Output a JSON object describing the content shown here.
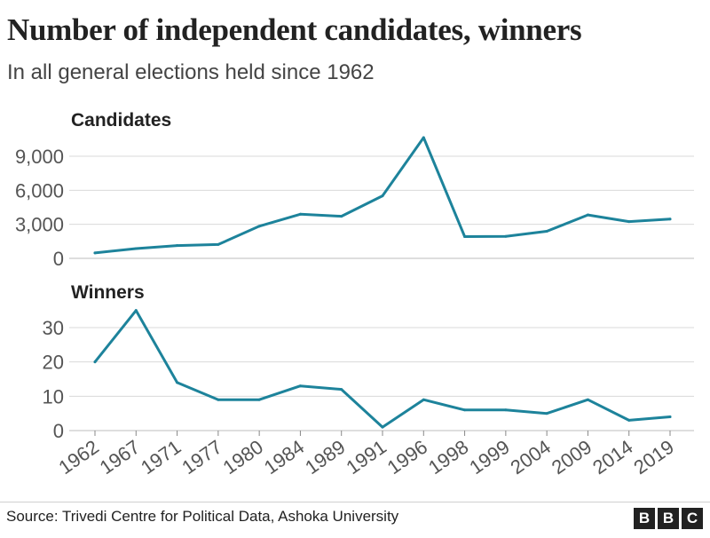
{
  "title": "Number of independent candidates, winners",
  "subtitle": "In all general elections held since 1962",
  "source": "Source: Trivedi Centre for Political Data, Ashoka University",
  "logo_letters": [
    "B",
    "B",
    "C"
  ],
  "colors": {
    "line": "#1d839b",
    "grid": "#d9d9d9",
    "text": "#222222",
    "tick_label": "#555555"
  },
  "chart_data": [
    {
      "type": "line",
      "title": "Candidates",
      "x": [
        "1962",
        "1967",
        "1971",
        "1977",
        "1980",
        "1984",
        "1989",
        "1991",
        "1996",
        "1998",
        "1999",
        "2004",
        "2009",
        "2014",
        "2019"
      ],
      "series": [
        {
          "values": [
            480,
            860,
            1130,
            1220,
            2830,
            3890,
            3710,
            5510,
            10640,
            1920,
            1940,
            2390,
            3830,
            3240,
            3460
          ]
        }
      ],
      "ylim": [
        0,
        10500
      ],
      "yticks": [
        0,
        3000,
        6000,
        9000
      ],
      "ytick_labels": [
        "0",
        "3,000",
        "6,000",
        "9,000"
      ],
      "grid": true
    },
    {
      "type": "line",
      "title": "Winners",
      "x": [
        "1962",
        "1967",
        "1971",
        "1977",
        "1980",
        "1984",
        "1989",
        "1991",
        "1996",
        "1998",
        "1999",
        "2004",
        "2009",
        "2014",
        "2019"
      ],
      "series": [
        {
          "values": [
            20,
            35,
            14,
            9,
            9,
            13,
            12,
            1,
            9,
            6,
            6,
            5,
            9,
            3,
            4
          ]
        }
      ],
      "ylim": [
        0,
        35
      ],
      "yticks": [
        0,
        10,
        20,
        30
      ],
      "ytick_labels": [
        "0",
        "10",
        "20",
        "30"
      ],
      "grid": true
    }
  ]
}
